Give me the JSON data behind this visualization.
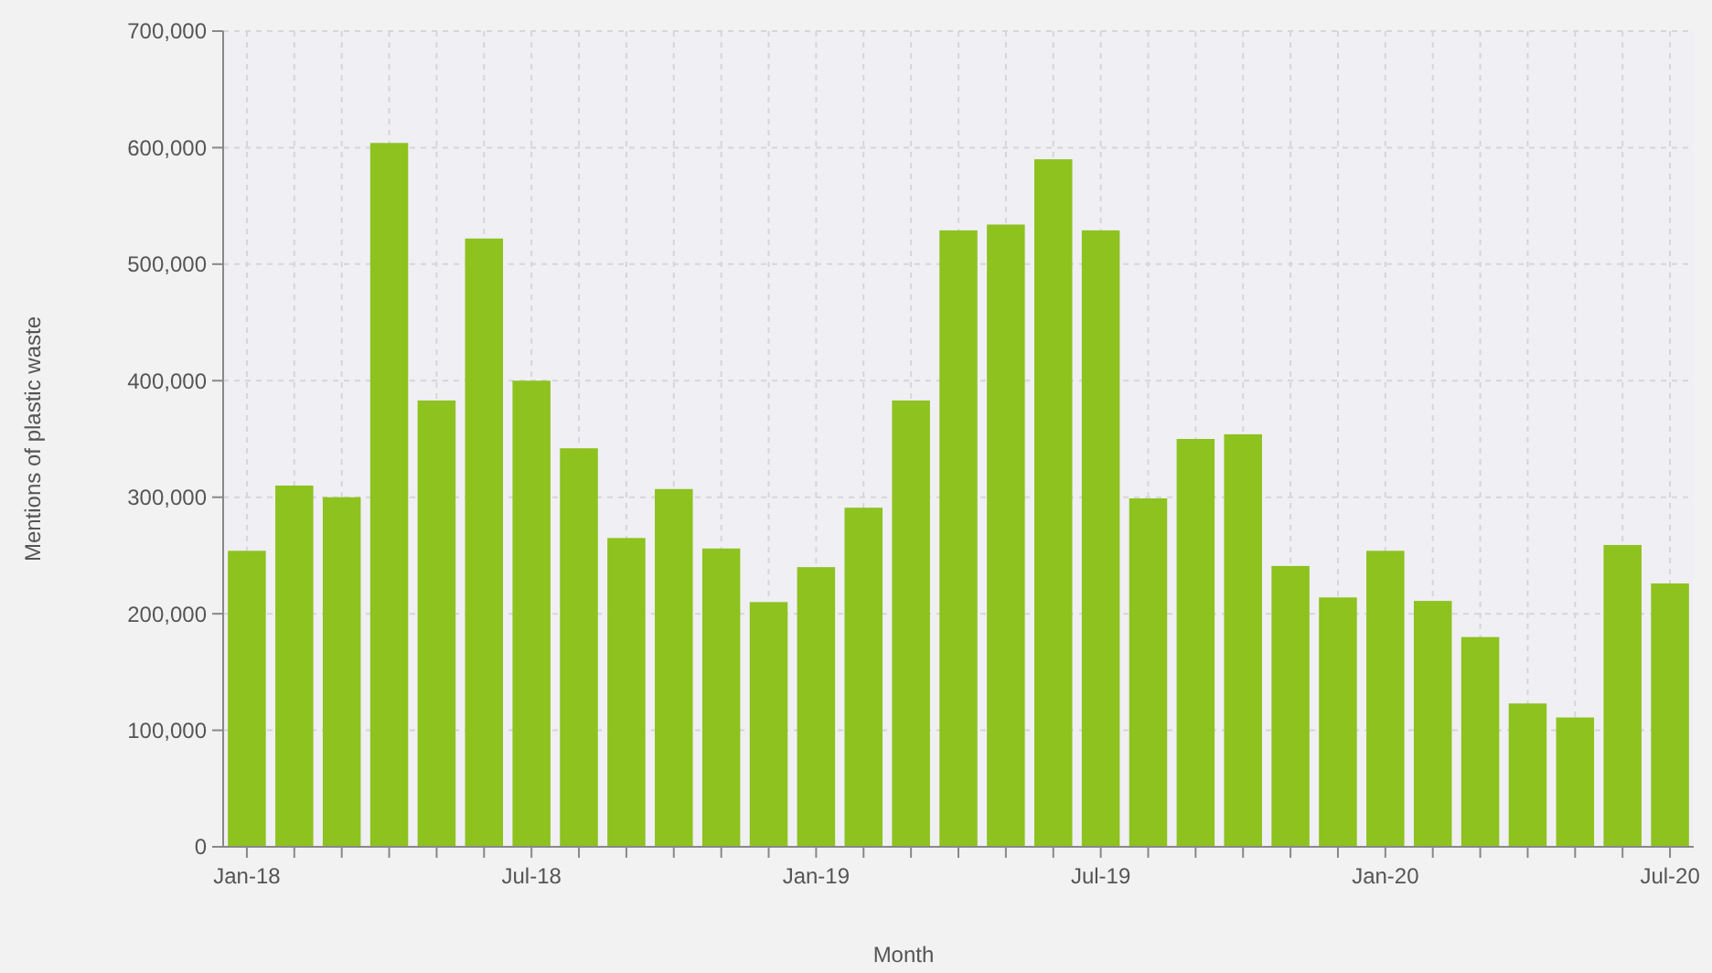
{
  "chart_data": {
    "type": "bar",
    "xlabel": "Month",
    "ylabel": "Mentions of plastic waste",
    "categories": [
      "Jan-18",
      null,
      null,
      null,
      null,
      null,
      "Jul-18",
      null,
      null,
      null,
      null,
      null,
      "Jan-19",
      null,
      null,
      null,
      null,
      null,
      "Jul-19",
      null,
      null,
      null,
      null,
      null,
      "Jan-20",
      null,
      null,
      null,
      null,
      null,
      "Jul-20"
    ],
    "values": [
      254000,
      310000,
      300000,
      604000,
      383000,
      522000,
      400000,
      342000,
      265000,
      307000,
      256000,
      210000,
      240000,
      291000,
      383000,
      529000,
      534000,
      590000,
      529000,
      299000,
      350000,
      354000,
      241000,
      214000,
      254000,
      211000,
      180000,
      123000,
      111000,
      259000,
      226000
    ],
    "color": "#8dc21f",
    "ylim": [
      0,
      700000
    ],
    "yticks": [
      {
        "value": 0,
        "label": "0"
      },
      {
        "value": 100000,
        "label": "100,000"
      },
      {
        "value": 200000,
        "label": "200,000"
      },
      {
        "value": 300000,
        "label": "300,000"
      },
      {
        "value": 400000,
        "label": "400,000"
      },
      {
        "value": 500000,
        "label": "500,000"
      },
      {
        "value": 600000,
        "label": "600,000"
      },
      {
        "value": 700000,
        "label": "700,000"
      }
    ],
    "grid": true
  }
}
